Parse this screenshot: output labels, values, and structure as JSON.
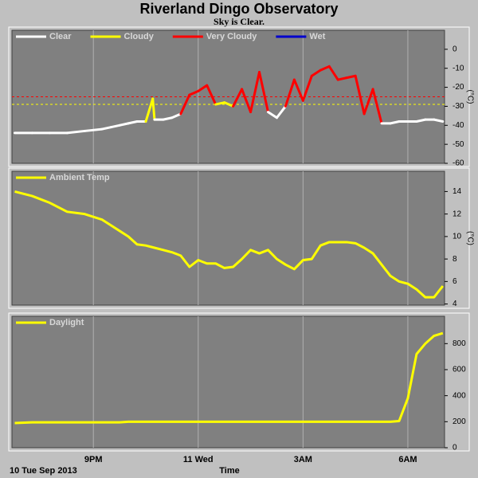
{
  "title": "Riverland Dingo Observatory",
  "subtitle": "Sky is Clear.",
  "date_label": "10 Tue Sep 2013",
  "xlabel": "Time",
  "chart_data": [
    {
      "type": "line",
      "ylabel": "(°C)",
      "xlim": [
        18.67,
        31.05
      ],
      "xticks": [
        21,
        24,
        27,
        30
      ],
      "ylim": [
        -60,
        10
      ],
      "yticks": [
        0,
        -10,
        -20,
        -30,
        -40,
        -50,
        -60
      ],
      "grid": true,
      "legend": [
        {
          "name": "Clear",
          "color": "#ffffff"
        },
        {
          "name": "Cloudy",
          "color": "#ffff00"
        },
        {
          "name": "Very Cloudy",
          "color": "#ff0000"
        },
        {
          "name": "Wet",
          "color": "#0000cc"
        }
      ],
      "base_color": "#ffffff",
      "thresholds": [
        {
          "value": -25,
          "color": "#ff0000"
        },
        {
          "value": -29,
          "color": "#ffff00"
        }
      ],
      "x": [
        18.75,
        19.25,
        19.75,
        20.25,
        20.75,
        21.25,
        21.5,
        21.75,
        22,
        22.25,
        22.5,
        22.7,
        22.75,
        23,
        23.25,
        23.5,
        23.75,
        24,
        24.25,
        24.5,
        24.75,
        25,
        25.25,
        25.5,
        25.75,
        26,
        26.25,
        26.5,
        26.75,
        27,
        27.25,
        27.5,
        27.75,
        28,
        28.25,
        28.5,
        28.75,
        29,
        29.25,
        29.5,
        29.75,
        30,
        30.25,
        30.5,
        30.75,
        31
      ],
      "values": [
        -44,
        -44,
        -44,
        -44,
        -43,
        -42,
        -41,
        -40,
        -39,
        -38,
        -38,
        -26,
        -37,
        -37,
        -36,
        -34,
        -24,
        -22,
        -19,
        -29,
        -28,
        -30,
        -21,
        -33,
        -12,
        -33,
        -36,
        -30,
        -16,
        -27,
        -14,
        -11,
        -9,
        -16,
        -15,
        -14,
        -34,
        -21,
        -39,
        -39,
        -38,
        -38,
        -38,
        -37,
        -37,
        -38
      ]
    },
    {
      "type": "line",
      "ylabel": "(°C)",
      "xlim": [
        18.67,
        31.05
      ],
      "xticks": [
        21,
        24,
        27,
        30
      ],
      "ylim": [
        3.9,
        15.8
      ],
      "yticks": [
        14,
        12,
        10,
        8,
        6,
        4
      ],
      "grid": true,
      "x": [
        18.75,
        19.25,
        19.75,
        20.25,
        20.75,
        21.25,
        21.5,
        21.75,
        22,
        22.25,
        22.5,
        22.75,
        23,
        23.25,
        23.5,
        23.75,
        24,
        24.25,
        24.5,
        24.75,
        25,
        25.25,
        25.5,
        25.75,
        26,
        26.25,
        26.5,
        26.75,
        27,
        27.25,
        27.5,
        27.75,
        28,
        28.25,
        28.5,
        28.75,
        29,
        29.25,
        29.5,
        29.75,
        30,
        30.25,
        30.5,
        30.75,
        31
      ],
      "series": [
        {
          "name": "Ambient Temp",
          "color": "#ffff00",
          "values": [
            14.0,
            13.6,
            13.0,
            12.2,
            12.0,
            11.5,
            11.0,
            10.5,
            10.0,
            9.3,
            9.2,
            9.0,
            8.8,
            8.6,
            8.3,
            7.3,
            7.9,
            7.6,
            7.6,
            7.2,
            7.3,
            8.0,
            8.8,
            8.5,
            8.8,
            8.0,
            7.5,
            7.1,
            7.9,
            8.0,
            9.2,
            9.5,
            9.5,
            9.5,
            9.4,
            9.0,
            8.5,
            7.5,
            6.5,
            6.0,
            5.8,
            5.3,
            4.6,
            4.6,
            5.6
          ]
        }
      ]
    },
    {
      "type": "line",
      "xlim": [
        18.67,
        31.05
      ],
      "xticks": [
        {
          "value": 21,
          "label": "9PM"
        },
        {
          "value": 24,
          "label": "11 Wed"
        },
        {
          "value": 27,
          "label": "3AM"
        },
        {
          "value": 30,
          "label": "6AM"
        }
      ],
      "ylim": [
        0,
        1010
      ],
      "yticks": [
        0,
        200,
        400,
        600,
        800
      ],
      "grid": true,
      "x": [
        18.75,
        19.25,
        19.75,
        20.25,
        20.75,
        21.25,
        21.5,
        21.75,
        22,
        22.25,
        22.5,
        22.75,
        23,
        23.25,
        23.5,
        23.75,
        24,
        24.25,
        24.5,
        24.75,
        25,
        25.25,
        25.5,
        25.75,
        26,
        26.25,
        26.5,
        26.75,
        27,
        27.25,
        27.5,
        27.75,
        28,
        28.25,
        28.5,
        28.75,
        29,
        29.25,
        29.5,
        29.75,
        30,
        30.25,
        30.5,
        30.75,
        31
      ],
      "series": [
        {
          "name": "Daylight",
          "color": "#ffff00",
          "values": [
            190,
            195,
            195,
            195,
            195,
            195,
            195,
            195,
            200,
            200,
            200,
            200,
            200,
            200,
            200,
            200,
            200,
            200,
            200,
            200,
            200,
            200,
            200,
            200,
            200,
            200,
            200,
            200,
            200,
            200,
            200,
            200,
            200,
            200,
            200,
            200,
            200,
            200,
            200,
            205,
            380,
            720,
            800,
            860,
            880
          ]
        }
      ]
    }
  ]
}
